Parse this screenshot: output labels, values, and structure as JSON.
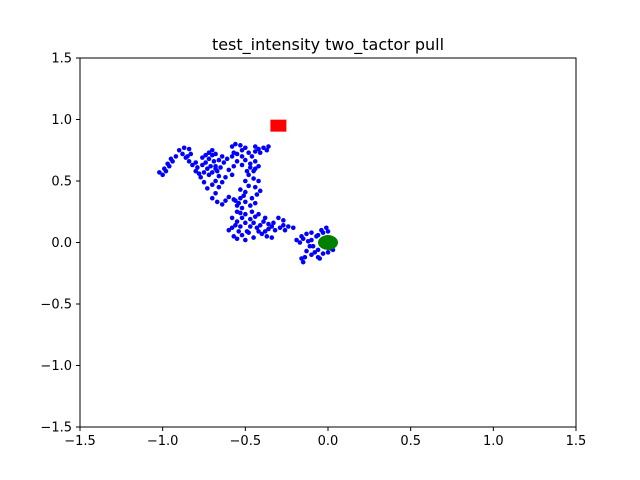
{
  "chart_data": {
    "type": "scatter",
    "title": "test_intensity two_tactor pull",
    "xlabel": "",
    "ylabel": "",
    "xlim": [
      -1.5,
      1.5
    ],
    "ylim": [
      -1.5,
      1.5
    ],
    "xticks": [
      -1.5,
      -1.0,
      -0.5,
      0.0,
      0.5,
      1.0,
      1.5
    ],
    "yticks": [
      -1.5,
      -1.0,
      -0.5,
      0.0,
      0.5,
      1.0,
      1.5
    ],
    "xtick_labels": [
      "−1.5",
      "−1.0",
      "−0.5",
      "0.0",
      "0.5",
      "1.0",
      "1.5"
    ],
    "ytick_labels": [
      "−1.5",
      "−1.0",
      "−0.5",
      "0.0",
      "0.5",
      "1.0",
      "1.5"
    ],
    "grid": false,
    "colors": {
      "trajectory": "#0000ff",
      "target": "#ff0000",
      "start": "#008000"
    },
    "series": [
      {
        "marker": "point",
        "color": "#0000ff",
        "points": [
          [
            0.02,
            -0.05
          ],
          [
            0.03,
            -0.03
          ],
          [
            0.02,
            0.0
          ],
          [
            -0.01,
            0.02
          ],
          [
            -0.03,
            0.03
          ],
          [
            -0.06,
            0.06
          ],
          [
            -0.04,
            0.1
          ],
          [
            -0.01,
            0.12
          ],
          [
            0.0,
            0.09
          ],
          [
            -0.03,
            0.08
          ],
          [
            -0.07,
            0.05
          ],
          [
            -0.1,
            0.02
          ],
          [
            -0.09,
            -0.03
          ],
          [
            -0.06,
            -0.06
          ],
          [
            -0.03,
            -0.09
          ],
          [
            -0.06,
            -0.12
          ],
          [
            -0.1,
            -0.1
          ],
          [
            -0.14,
            -0.12
          ],
          [
            -0.15,
            -0.16
          ],
          [
            -0.16,
            -0.13
          ],
          [
            -0.13,
            -0.07
          ],
          [
            -0.11,
            -0.03
          ],
          [
            -0.12,
            0.01
          ],
          [
            -0.15,
            0.03
          ],
          [
            -0.17,
            0.0
          ],
          [
            -0.19,
            0.02
          ],
          [
            -0.16,
            0.05
          ],
          [
            -0.13,
            0.07
          ],
          [
            -0.1,
            0.08
          ],
          [
            -0.08,
            -0.08
          ],
          [
            -0.05,
            -0.13
          ],
          [
            0.0,
            -0.08
          ],
          [
            0.03,
            -0.06
          ],
          [
            -0.21,
            0.12
          ],
          [
            -0.24,
            0.13
          ],
          [
            -0.27,
            0.14
          ],
          [
            -0.29,
            0.12
          ],
          [
            -0.26,
            0.1
          ],
          [
            -0.27,
            0.18
          ],
          [
            -0.3,
            0.2
          ],
          [
            -0.33,
            0.16
          ],
          [
            -0.34,
            0.13
          ],
          [
            -0.36,
            0.11
          ],
          [
            -0.38,
            0.09
          ],
          [
            -0.4,
            0.07
          ],
          [
            -0.37,
            0.05
          ],
          [
            -0.34,
            0.04
          ],
          [
            -0.36,
            0.15
          ],
          [
            -0.39,
            0.17
          ],
          [
            -0.41,
            0.14
          ],
          [
            -0.43,
            0.12
          ],
          [
            -0.45,
            0.16
          ],
          [
            -0.47,
            0.19
          ],
          [
            -0.44,
            0.21
          ],
          [
            -0.42,
            0.23
          ],
          [
            -0.46,
            0.25
          ],
          [
            -0.5,
            0.23
          ],
          [
            -0.52,
            0.2
          ],
          [
            -0.5,
            0.16
          ],
          [
            -0.47,
            0.13
          ],
          [
            -0.49,
            0.09
          ],
          [
            -0.52,
            0.06
          ],
          [
            -0.54,
            0.09
          ],
          [
            -0.53,
            0.13
          ],
          [
            -0.56,
            0.14
          ],
          [
            -0.58,
            0.12
          ],
          [
            -0.55,
            0.17
          ],
          [
            -0.53,
            0.24
          ],
          [
            -0.52,
            0.28
          ],
          [
            -0.54,
            0.32
          ],
          [
            -0.56,
            0.34
          ],
          [
            -0.53,
            0.36
          ],
          [
            -0.5,
            0.33
          ],
          [
            -0.47,
            0.3
          ],
          [
            -0.44,
            0.32
          ],
          [
            -0.46,
            0.36
          ],
          [
            -0.43,
            0.39
          ],
          [
            -0.41,
            0.42
          ],
          [
            -0.44,
            0.45
          ],
          [
            -0.42,
            0.5
          ],
          [
            -0.45,
            0.52
          ],
          [
            -0.48,
            0.55
          ],
          [
            -0.5,
            0.5
          ],
          [
            -0.48,
            0.46
          ],
          [
            -0.5,
            0.41
          ],
          [
            -0.53,
            0.43
          ],
          [
            -0.51,
            0.38
          ],
          [
            -0.57,
            0.05
          ],
          [
            -0.6,
            0.1
          ],
          [
            -0.58,
            0.2
          ],
          [
            -0.55,
            0.25
          ],
          [
            -0.48,
            0.08
          ],
          [
            -0.45,
            0.04
          ],
          [
            -0.42,
            0.09
          ],
          [
            -0.5,
            0.02
          ],
          [
            -0.55,
            0.03
          ],
          [
            -0.38,
            0.2
          ],
          [
            -0.32,
            0.1
          ],
          [
            -0.45,
            0.58
          ],
          [
            -0.42,
            0.62
          ],
          [
            -0.44,
            0.66
          ],
          [
            -0.47,
            0.64
          ],
          [
            -0.5,
            0.67
          ],
          [
            -0.52,
            0.7
          ],
          [
            -0.55,
            0.72
          ],
          [
            -0.52,
            0.75
          ],
          [
            -0.48,
            0.73
          ],
          [
            -0.46,
            0.7
          ],
          [
            -0.44,
            0.74
          ],
          [
            -0.42,
            0.76
          ],
          [
            -0.44,
            0.78
          ],
          [
            -0.41,
            0.73
          ],
          [
            -0.39,
            0.77
          ],
          [
            -0.37,
            0.75
          ],
          [
            -0.36,
            0.78
          ],
          [
            -0.44,
            0.6
          ],
          [
            -0.47,
            0.61
          ],
          [
            -0.49,
            0.58
          ],
          [
            -0.52,
            0.63
          ],
          [
            -0.55,
            0.66
          ],
          [
            -0.57,
            0.62
          ],
          [
            -0.6,
            0.59
          ],
          [
            -0.58,
            0.55
          ],
          [
            -0.62,
            0.53
          ],
          [
            -0.64,
            0.49
          ],
          [
            -0.66,
            0.45
          ],
          [
            -0.68,
            0.4
          ],
          [
            -0.7,
            0.36
          ],
          [
            -0.67,
            0.33
          ],
          [
            -0.64,
            0.31
          ],
          [
            -0.62,
            0.34
          ],
          [
            -0.6,
            0.37
          ],
          [
            -0.57,
            0.35
          ],
          [
            -0.55,
            0.3
          ],
          [
            -0.57,
            0.73
          ],
          [
            -0.58,
            0.78
          ],
          [
            -0.56,
            0.8
          ],
          [
            -0.53,
            0.79
          ],
          [
            -0.5,
            0.77
          ],
          [
            -0.58,
            0.7
          ],
          [
            -0.61,
            0.68
          ],
          [
            -0.63,
            0.65
          ],
          [
            -0.65,
            0.61
          ],
          [
            -0.67,
            0.58
          ],
          [
            -0.66,
            0.54
          ],
          [
            -0.68,
            0.5
          ],
          [
            -0.7,
            0.47
          ],
          [
            -0.73,
            0.44
          ],
          [
            -0.75,
            0.49
          ],
          [
            -0.77,
            0.53
          ],
          [
            -0.75,
            0.57
          ],
          [
            -0.73,
            0.6
          ],
          [
            -0.76,
            0.63
          ],
          [
            -0.79,
            0.61
          ],
          [
            -0.8,
            0.58
          ],
          [
            -0.78,
            0.56
          ],
          [
            -0.74,
            0.65
          ],
          [
            -0.72,
            0.68
          ],
          [
            -0.7,
            0.71
          ],
          [
            -0.72,
            0.73
          ],
          [
            -0.74,
            0.71
          ],
          [
            -0.76,
            0.69
          ],
          [
            -0.7,
            0.75
          ],
          [
            -0.68,
            0.72
          ],
          [
            -0.69,
            0.66
          ],
          [
            -0.71,
            0.62
          ],
          [
            -0.68,
            0.62
          ],
          [
            -0.66,
            0.67
          ],
          [
            -0.64,
            0.7
          ],
          [
            -0.68,
            0.6
          ],
          [
            -0.7,
            0.57
          ],
          [
            -0.72,
            0.55
          ],
          [
            -0.8,
            0.65
          ],
          [
            -0.82,
            0.63
          ],
          [
            -0.84,
            0.66
          ],
          [
            -0.86,
            0.69
          ],
          [
            -0.88,
            0.72
          ],
          [
            -0.9,
            0.75
          ],
          [
            -0.87,
            0.77
          ],
          [
            -0.84,
            0.76
          ],
          [
            -0.92,
            0.7
          ],
          [
            -0.94,
            0.66
          ],
          [
            -0.96,
            0.62
          ],
          [
            -0.98,
            0.58
          ],
          [
            -1.0,
            0.55
          ],
          [
            -1.02,
            0.57
          ],
          [
            -0.99,
            0.6
          ],
          [
            -0.97,
            0.64
          ],
          [
            -0.95,
            0.68
          ],
          [
            -0.85,
            0.7
          ],
          [
            -0.83,
            0.72
          ]
        ]
      },
      {
        "marker": "square",
        "color": "#ff0000",
        "points": [
          [
            -0.3,
            0.95
          ]
        ]
      },
      {
        "marker": "circle",
        "color": "#008000",
        "points": [
          [
            0.0,
            0.0
          ]
        ]
      }
    ]
  }
}
